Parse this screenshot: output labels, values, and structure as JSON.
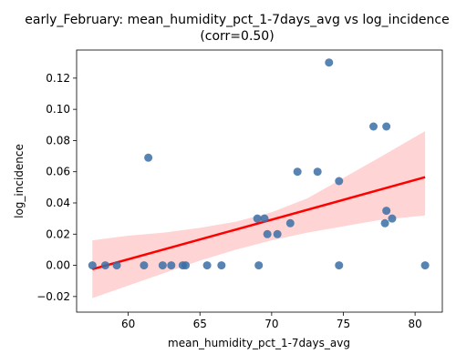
{
  "chart_data": {
    "type": "scatter",
    "title": "early_February: mean_humidity_pct_1-7days_avg vs log_incidence",
    "subtitle": "(corr=0.50)",
    "xlabel": "mean_humidity_pct_1-7days_avg",
    "ylabel": "log_incidence",
    "xlim": [
      56.4,
      81.9
    ],
    "ylim": [
      -0.03,
      0.138
    ],
    "xticks": [
      60,
      65,
      70,
      75,
      80
    ],
    "yticks": [
      -0.02,
      0.0,
      0.02,
      0.04,
      0.06,
      0.08,
      0.1,
      0.12
    ],
    "ytick_labels": [
      "−0.02",
      "0.00",
      "0.02",
      "0.04",
      "0.06",
      "0.08",
      "0.10",
      "0.12"
    ],
    "grid": false,
    "points": {
      "x": [
        57.5,
        58.4,
        59.2,
        61.1,
        61.4,
        62.4,
        63.0,
        63.8,
        64.0,
        65.5,
        66.5,
        69.0,
        69.1,
        69.5,
        69.7,
        70.4,
        71.3,
        71.8,
        73.2,
        74.0,
        74.7,
        74.7,
        77.1,
        77.9,
        78.0,
        78.0,
        78.4,
        80.7
      ],
      "y": [
        0.0,
        0.0,
        0.0,
        0.0,
        0.069,
        0.0,
        0.0,
        0.0,
        0.0,
        0.0,
        0.0,
        0.03,
        0.0,
        0.03,
        0.02,
        0.02,
        0.027,
        0.06,
        0.06,
        0.13,
        0.054,
        0.0,
        0.089,
        0.027,
        0.089,
        0.035,
        0.03,
        0.0
      ]
    },
    "regression": {
      "x": [
        57.5,
        80.7
      ],
      "y": [
        -0.0025,
        0.0565
      ]
    },
    "confidence_band": {
      "x": [
        57.5,
        60,
        62.5,
        65,
        67.5,
        70,
        72.5,
        75,
        77.5,
        80.7
      ],
      "upper": [
        0.016,
        0.019,
        0.021,
        0.024,
        0.028,
        0.034,
        0.043,
        0.056,
        0.069,
        0.086
      ],
      "lower": [
        -0.021,
        -0.013,
        -0.005,
        0.003,
        0.01,
        0.016,
        0.021,
        0.025,
        0.029,
        0.032
      ]
    },
    "colors": {
      "points": "#3a6ea5",
      "regression": "#ff0000",
      "band": "#ffcccc"
    }
  }
}
